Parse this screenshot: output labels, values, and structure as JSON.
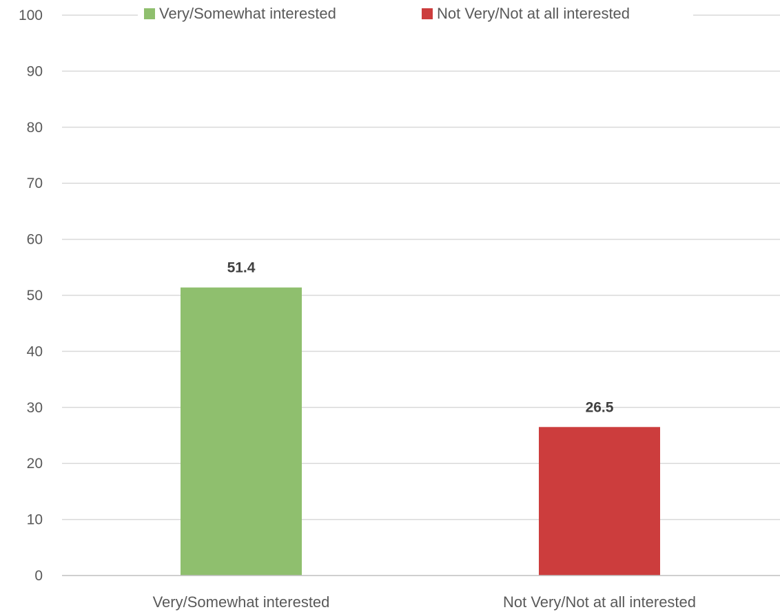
{
  "chart_data": {
    "type": "bar",
    "categories": [
      "Very/Somewhat interested",
      "Not Very/Not at all interested"
    ],
    "values": [
      51.4,
      26.5
    ],
    "data_labels": [
      "51.4",
      "26.5"
    ],
    "bar_colors": [
      "#8fbf6e",
      "#cc3d3d"
    ],
    "legend": {
      "placement": "top",
      "entries": [
        {
          "label": "Very/Somewhat interested",
          "color": "#8fbf6e"
        },
        {
          "label": "Not Very/Not at all interested",
          "color": "#cc3d3d"
        }
      ]
    },
    "yticks": [
      "0",
      "10",
      "20",
      "30",
      "40",
      "50",
      "60",
      "70",
      "80",
      "90",
      "100"
    ],
    "ylim": [
      0,
      100
    ],
    "grid": true,
    "title": "",
    "xlabel": "",
    "ylabel": ""
  }
}
